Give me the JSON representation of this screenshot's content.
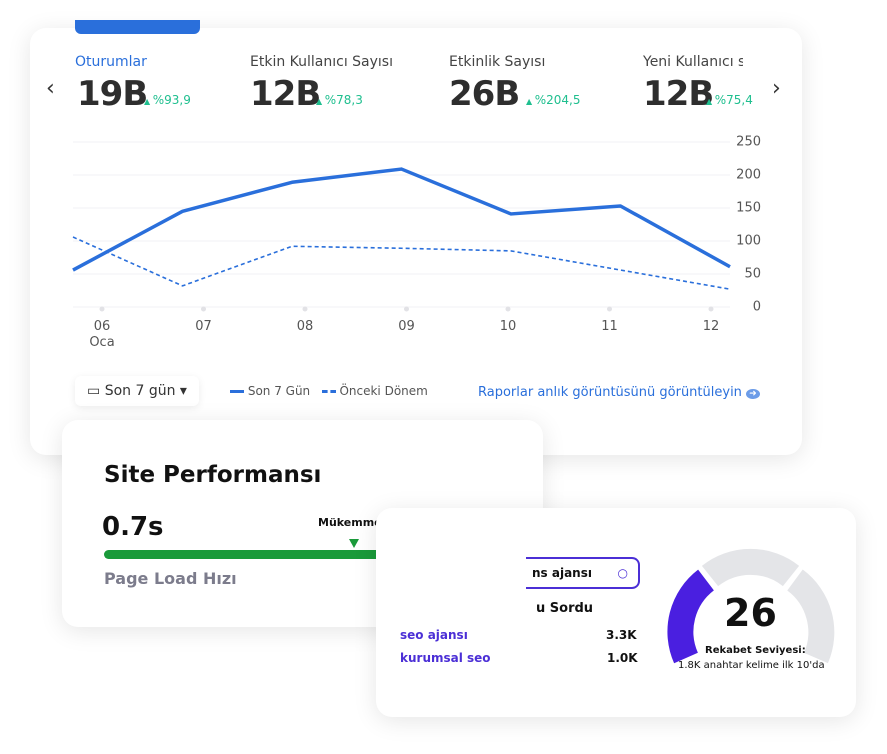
{
  "metrics": [
    {
      "label": "Oturumlar",
      "value": "19B",
      "change": "%93,9"
    },
    {
      "label": "Etkin Kullanıcı Sayısı",
      "value": "12B",
      "change": "%78,3"
    },
    {
      "label": "Etkinlik Sayısı",
      "value": "26B",
      "change": "%204,5"
    },
    {
      "label": "Yeni Kullanıcı s",
      "value": "12B",
      "change": "%75,4"
    }
  ],
  "chart_data": {
    "type": "line",
    "categories": [
      "06 Oca",
      "07",
      "08",
      "09",
      "10",
      "11",
      "12"
    ],
    "series": [
      {
        "name": "Son 7 Gün",
        "color": "#2a6fdb",
        "style": "solid",
        "values": [
          56,
          145,
          189,
          209,
          141,
          153,
          61
        ]
      },
      {
        "name": "Önceki Dönem",
        "color": "#2a6fdb",
        "style": "dashed",
        "values": [
          106,
          32,
          92,
          89,
          85,
          56,
          27
        ]
      }
    ],
    "ylim": [
      0,
      250
    ],
    "yticks": [
      0,
      50,
      100,
      150,
      200,
      250
    ],
    "grid": true
  },
  "date_range": "Son 7 gün",
  "report_link": "Raporlar anlık görüntüsünü görüntüleyin",
  "performance": {
    "title": "Site Performansı",
    "value": "0.7s",
    "status": "Mükemmel!",
    "label": "Page Load Hızı"
  },
  "keywords": {
    "search": "ns ajansı",
    "header": "u Sordu",
    "rows": [
      [
        "seo ajansı",
        "3.3K"
      ],
      [
        "kurumsal seo",
        "1.0K"
      ]
    ]
  },
  "gauge": {
    "value": "26",
    "label": "Rekabet Seviyesi:",
    "note": "1.8K anahtar kelime ilk 10'da"
  }
}
